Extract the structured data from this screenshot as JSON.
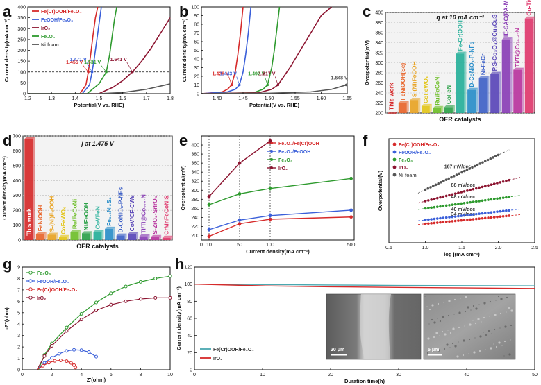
{
  "colors": {
    "red": "#d62a2a",
    "blue": "#3a5fd9",
    "dark_red": "#8c1430",
    "green": "#2e9a2e",
    "gray": "#555555",
    "teal": "#4aa8b0"
  },
  "chart_data": [
    {
      "id": "a",
      "letter": "a",
      "type": "line",
      "xlabel": "Potential(V vs. RHE)",
      "ylabel": "Current density(mA cm⁻²)",
      "xlim": [
        1.2,
        1.8
      ],
      "ylim": [
        0,
        400
      ],
      "xticks": [
        "1.2",
        "1.3",
        "1.4",
        "1.5",
        "1.6",
        "1.7",
        "1.8"
      ],
      "yticks": [
        "0",
        "50",
        "100",
        "150",
        "200",
        "250",
        "300",
        "350",
        "400"
      ],
      "series": [
        {
          "name": "Fe(Cr)OOH/Fe₃O₄",
          "color": "red",
          "x": [
            1.2,
            1.42,
            1.445,
            1.455,
            1.465,
            1.475,
            1.485,
            1.495
          ],
          "y": [
            0,
            0,
            40,
            100,
            180,
            270,
            350,
            400
          ]
        },
        {
          "name": "FeOOH/Fe₃O₄",
          "color": "blue",
          "x": [
            1.2,
            1.43,
            1.46,
            1.471,
            1.48,
            1.49,
            1.5,
            1.51
          ],
          "y": [
            0,
            0,
            40,
            100,
            160,
            240,
            320,
            400
          ]
        },
        {
          "name": "IrO₂",
          "color": "dark_red",
          "x": [
            1.2,
            1.5,
            1.56,
            1.6,
            1.641,
            1.68,
            1.72,
            1.76,
            1.8
          ],
          "y": [
            0,
            0,
            30,
            60,
            100,
            150,
            210,
            280,
            350
          ]
        },
        {
          "name": "Fe₃O₄",
          "color": "green",
          "x": [
            1.2,
            1.45,
            1.5,
            1.531,
            1.545,
            1.555,
            1.565,
            1.575
          ],
          "y": [
            0,
            0,
            45,
            100,
            180,
            260,
            340,
            400
          ]
        },
        {
          "name": "Ni foam",
          "color": "gray",
          "x": [
            1.2,
            1.5,
            1.6,
            1.7,
            1.8
          ],
          "y": [
            0,
            0,
            5,
            20,
            45
          ]
        }
      ],
      "annotations": [
        {
          "text": "1.455 V",
          "color": "red",
          "x": 1.455,
          "y": 100
        },
        {
          "text": "1.471 V",
          "color": "blue",
          "x": 1.471,
          "y": 100
        },
        {
          "text": "1.531 V",
          "color": "green",
          "x": 1.531,
          "y": 100
        },
        {
          "text": "1.641 V",
          "color": "dark_red",
          "x": 1.641,
          "y": 100
        }
      ],
      "refline": 100
    },
    {
      "id": "b",
      "letter": "b",
      "type": "line",
      "xlabel": "Potential(V vs. RHE)",
      "ylabel": "Current density(mA cm⁻²)",
      "xlim": [
        1.37,
        1.65
      ],
      "ylim": [
        0,
        100
      ],
      "xticks": [
        "1.40",
        "1.45",
        "1.50",
        "1.55",
        "1.60",
        "1.65"
      ],
      "yticks": [
        "0",
        "10",
        "20",
        "30",
        "40",
        "50",
        "60",
        "70",
        "80",
        "90",
        "100"
      ],
      "series": [
        {
          "color": "red",
          "x": [
            1.37,
            1.41,
            1.42,
            1.428,
            1.435,
            1.44,
            1.445,
            1.45
          ],
          "y": [
            0,
            2,
            5,
            10,
            25,
            45,
            70,
            100
          ]
        },
        {
          "color": "blue",
          "x": [
            1.37,
            1.42,
            1.435,
            1.443,
            1.45,
            1.455,
            1.46,
            1.465
          ],
          "y": [
            0,
            2,
            5,
            10,
            25,
            45,
            70,
            100
          ]
        },
        {
          "color": "green",
          "x": [
            1.37,
            1.47,
            1.488,
            1.497,
            1.505,
            1.51,
            1.515,
            1.52
          ],
          "y": [
            0,
            1,
            5,
            10,
            30,
            50,
            75,
            100
          ]
        },
        {
          "color": "dark_red",
          "x": [
            1.37,
            1.48,
            1.505,
            1.517,
            1.54,
            1.56,
            1.58,
            1.6,
            1.62
          ],
          "y": [
            0,
            1,
            5,
            10,
            30,
            50,
            70,
            90,
            100
          ]
        },
        {
          "color": "gray",
          "x": [
            1.37,
            1.5,
            1.58,
            1.62,
            1.648,
            1.65
          ],
          "y": [
            0,
            0.5,
            2,
            5,
            10,
            11
          ]
        }
      ],
      "annotations": [
        {
          "text": "1.428 V",
          "color": "red",
          "x": 1.428,
          "y": 10
        },
        {
          "text": "1.443 V",
          "color": "blue",
          "x": 1.443,
          "y": 10
        },
        {
          "text": "1.497 V",
          "color": "green",
          "x": 1.497,
          "y": 10
        },
        {
          "text": "1.517 V",
          "color": "dark_red",
          "x": 1.517,
          "y": 10
        },
        {
          "text": "1.648 V",
          "color": "gray",
          "x": 1.648,
          "y": 10
        }
      ],
      "refline": 10
    },
    {
      "id": "c",
      "letter": "c",
      "type": "bar",
      "title": "η at 10 mA cm⁻²",
      "xlabel": "OER catalysts",
      "ylabel": "Overpotential(mV)",
      "ylim": [
        200,
        400
      ],
      "yticks": [
        "200",
        "220",
        "240",
        "260",
        "280",
        "300",
        "320",
        "340",
        "360",
        "380",
        "400"
      ],
      "categories": [
        "This work",
        "FeNiOOH(Se)",
        "S-(Ni)FeOOH",
        "CoFeWOₓ",
        "Ru/FeCoNi",
        "CoFeN",
        "Fe-Cr(OOH)",
        "D-CoNiOₓ-P-NFs",
        "Ni-FeCr",
        "P,S-Co₃O₄@Cu₃CuS",
        "IE-SAC(PA-MA)",
        "Ti/Ti@Co₀.₄₇N",
        "Co-TiOₓ"
      ],
      "values": [
        198,
        220,
        226,
        214,
        210,
        212,
        318,
        246,
        270,
        278,
        346,
        286,
        388
      ],
      "bar_colors": [
        "#d62a2a",
        "#e8652b",
        "#e8a425",
        "#e3c51a",
        "#6fbf2a",
        "#2ea24a",
        "#27b09a",
        "#2a8ec9",
        "#3f62c7",
        "#5a47b8",
        "#8a3fb6",
        "#b8359e",
        "#e03a6e"
      ]
    },
    {
      "id": "d",
      "letter": "d",
      "type": "bar",
      "title": "j at 1.475 V",
      "xlabel": "OER catalysts",
      "ylabel": "Current density(mA cm⁻²)",
      "ylim": [
        0,
        700
      ],
      "yticks": [
        "0",
        "100",
        "200",
        "300",
        "400",
        "500",
        "600",
        "700"
      ],
      "categories": [
        "This work",
        "FeNiOOH",
        "S-(Ni)FeOOH",
        "CoFeWOₓ",
        "Ru/FeCoNi",
        "Ni/FeOOH",
        "CoVFeN",
        "Fe₀.₃Ni₂S₂",
        "D-CoNiOₓ-P-NFs",
        "CoV/CF-CWs",
        "Ti/Ti@Co₀.₄₇N",
        "S-ZrO₂-SrIrO₃",
        "CrMnFeCoNiS"
      ],
      "values": [
        680,
        40,
        35,
        20,
        55,
        45,
        55,
        75,
        30,
        40,
        25,
        20,
        15
      ],
      "bar_colors": [
        "#d62a2a",
        "#e8652b",
        "#e8a425",
        "#e3c51a",
        "#6fbf2a",
        "#2ea24a",
        "#27b09a",
        "#2a8ec9",
        "#3f62c7",
        "#5a47b8",
        "#8a3fb6",
        "#b8359e",
        "#e03a6e"
      ]
    },
    {
      "id": "e",
      "letter": "e",
      "type": "line",
      "xlabel": "Current density(mA cm⁻²)",
      "ylabel": "Overpotential(mV)",
      "xlim": [
        0,
        500
      ],
      "ylim": [
        190,
        420
      ],
      "xticks": [
        "0",
        "10",
        "50",
        "100",
        "500"
      ],
      "yticks": [
        "200",
        "220",
        "240",
        "260",
        "280",
        "300",
        "320",
        "340",
        "360",
        "380",
        "400"
      ],
      "categories": [
        "10",
        "50",
        "100",
        "500"
      ],
      "series": [
        {
          "name": "Fe₃O₄/Fe(Cr)OOH",
          "color": "red",
          "values": [
            198,
            226,
            236,
            241
          ]
        },
        {
          "name": "Fe₃O₄/FeOOH",
          "color": "blue",
          "values": [
            213,
            234,
            244,
            256
          ]
        },
        {
          "name": "Fe₃O₄",
          "color": "green",
          "values": [
            268,
            292,
            304,
            326
          ]
        },
        {
          "name": "IrO₂",
          "color": "dark_red",
          "values": [
            286,
            360,
            409,
            null
          ]
        }
      ]
    },
    {
      "id": "f",
      "letter": "f",
      "type": "scatter",
      "xlabel": "log j(mA cm⁻²)",
      "ylabel": "Overpotential(V)",
      "xlim": [
        0.5,
        2.5
      ],
      "ylim": [
        0.1,
        0.6
      ],
      "xticks": [
        "0.5",
        "1.0",
        "1.5",
        "2.0",
        "2.5"
      ],
      "series": [
        {
          "name": "Fe(Cr)OOH/Fe₃O₄",
          "color": "red",
          "slope_label": "34 mV/dec",
          "x0": 1.0,
          "x1": 2.15,
          "y0": 0.191,
          "slope": 0.034
        },
        {
          "name": "FeOOH/Fe₃O₄",
          "color": "blue",
          "slope_label": "40 mV/dec",
          "x0": 1.0,
          "x1": 2.15,
          "y0": 0.21,
          "slope": 0.04
        },
        {
          "name": "Fe₃O₄",
          "color": "green",
          "slope_label": "48 mV/dec",
          "x0": 1.0,
          "x1": 2.15,
          "y0": 0.265,
          "slope": 0.048
        },
        {
          "name": "IrO₂",
          "color": "dark_red",
          "slope_label": "88 mV/dec",
          "x0": 1.0,
          "x1": 2.15,
          "y0": 0.3,
          "slope": 0.088
        },
        {
          "name": "Ni foam",
          "color": "gray",
          "slope_label": "167 mV/dec",
          "x0": 1.0,
          "x1": 2.0,
          "y0": 0.355,
          "slope": 0.167
        }
      ]
    },
    {
      "id": "g",
      "letter": "g",
      "type": "line",
      "xlabel": "Z'(ohm)",
      "ylabel": "-Z''(ohm)",
      "xlim": [
        0,
        10
      ],
      "ylim": [
        0,
        9
      ],
      "xticks": [
        "0",
        "2",
        "4",
        "6",
        "8",
        "10"
      ],
      "yticks": [
        "0",
        "1",
        "2",
        "3",
        "4",
        "5",
        "6",
        "7",
        "8",
        "9"
      ],
      "series": [
        {
          "name": "Fe₃O₄",
          "color": "green",
          "x": [
            1.1,
            1.5,
            2,
            3,
            4,
            5,
            6,
            7,
            8,
            9,
            10
          ],
          "y": [
            0,
            1.3,
            2.3,
            3.7,
            4.9,
            5.9,
            6.7,
            7.3,
            7.7,
            8.0,
            8.2
          ]
        },
        {
          "name": "FeOOH/Fe₃O₄",
          "color": "blue",
          "x": [
            1.0,
            1.5,
            2.0,
            2.5,
            3.0,
            3.5,
            4.0,
            4.5,
            5.0
          ],
          "y": [
            0,
            0.6,
            1.05,
            1.4,
            1.65,
            1.75,
            1.72,
            1.55,
            1.15
          ]
        },
        {
          "name": "Fe(Cr)OOH/Fe₃O₄",
          "color": "red",
          "x": [
            1.0,
            1.4,
            1.8,
            2.2,
            2.6,
            3.0,
            3.3,
            3.5,
            3.6
          ],
          "y": [
            0,
            0.35,
            0.62,
            0.78,
            0.82,
            0.75,
            0.6,
            0.4,
            0.2
          ]
        },
        {
          "name": "IrO₂",
          "color": "dark_red",
          "x": [
            1.0,
            1.5,
            2,
            3,
            4,
            5,
            6,
            7,
            8,
            9,
            10
          ],
          "y": [
            0,
            1.2,
            2.1,
            3.4,
            4.4,
            5.2,
            5.7,
            6.0,
            6.2,
            6.3,
            6.3
          ]
        }
      ]
    },
    {
      "id": "h",
      "letter": "h",
      "type": "line",
      "xlabel": "Duration time(h)",
      "ylabel": "Current density(mA cm⁻²)",
      "xlim": [
        0,
        50
      ],
      "ylim": [
        0,
        120
      ],
      "xticks": [
        "0",
        "10",
        "20",
        "30",
        "40",
        "50"
      ],
      "yticks": [
        "0",
        "20",
        "40",
        "60",
        "80",
        "100",
        "120"
      ],
      "series": [
        {
          "name": "Fe(Cr)OOH/Fe₃O₄",
          "color": "teal",
          "x": [
            0,
            10,
            20,
            30,
            40,
            50
          ],
          "y": [
            100,
            99.5,
            99,
            98.5,
            98.2,
            98
          ]
        },
        {
          "name": "IrO₂",
          "color": "red",
          "x": [
            0,
            10,
            20,
            30,
            40,
            50
          ],
          "y": [
            100,
            98,
            97,
            96.2,
            95.6,
            95
          ]
        }
      ],
      "scalebars": [
        "20 μm",
        "5 μm"
      ]
    }
  ]
}
